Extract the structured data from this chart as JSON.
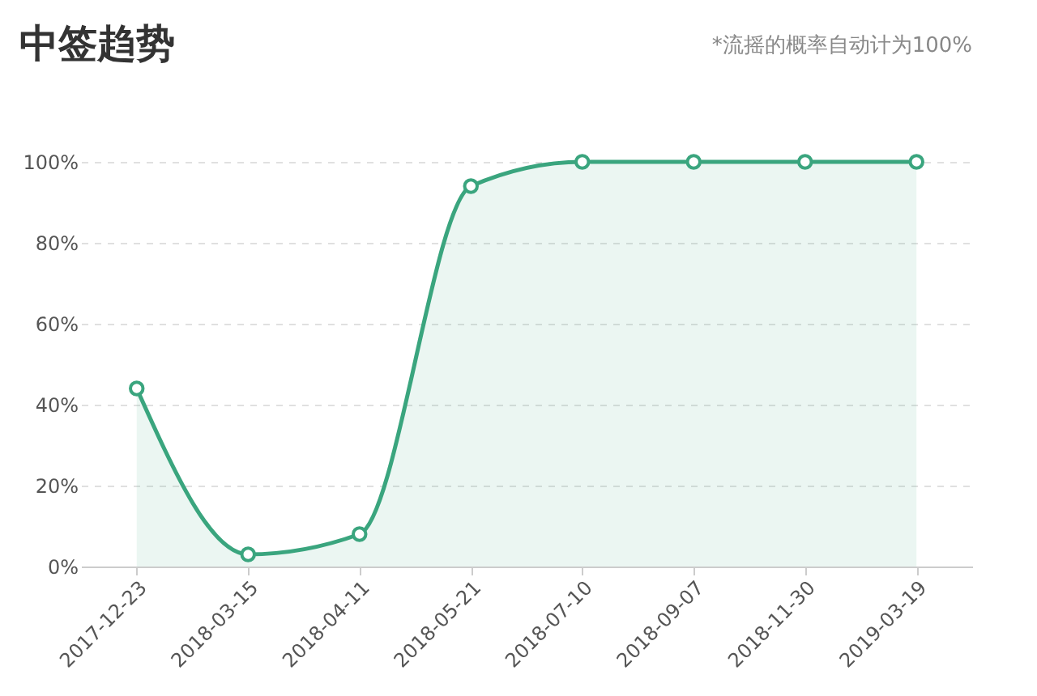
{
  "chart_data": {
    "type": "area",
    "title": "中签趋势",
    "annotations": [
      "*流摇的概率自动计为100%"
    ],
    "categories": [
      "2017-12-23",
      "2018-03-15",
      "2018-04-11",
      "2018-05-21",
      "2018-07-10",
      "2018-09-07",
      "2018-11-30",
      "2019-03-19"
    ],
    "series": [
      {
        "color": "#3aa57e",
        "values": [
          44,
          3,
          8,
          94,
          100,
          100,
          100,
          100
        ]
      }
    ],
    "ylim": [
      0,
      100
    ],
    "yticks": [
      {
        "value": 0,
        "label": "0%"
      },
      {
        "value": 20,
        "label": "20%"
      },
      {
        "value": 40,
        "label": "40%"
      },
      {
        "value": 60,
        "label": "60%"
      },
      {
        "value": 80,
        "label": "80%"
      },
      {
        "value": 100,
        "label": "100%"
      }
    ],
    "grid": "y",
    "marker": "circle"
  }
}
